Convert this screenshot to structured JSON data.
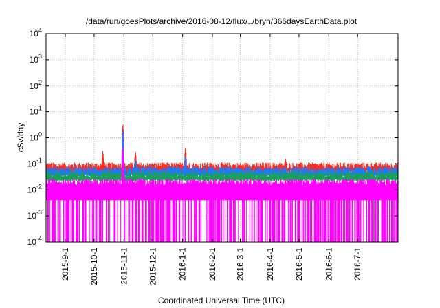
{
  "chart_data": {
    "type": "line",
    "title": "/data/run/goesPlots/archive/2016-08-12/flux/../bryn/366daysEarthData.plot",
    "xlabel": "Coordinated Universal Time (UTC)",
    "ylabel": "cSv/day",
    "xlim": [
      "2015-08-12",
      "2016-08-12"
    ],
    "ylim": [
      0.0001,
      10000
    ],
    "y_scale": "log",
    "grid": true,
    "x_ticks": [
      "2015-9-1",
      "2015-10-1",
      "2015-11-1",
      "2015-12-1",
      "2016-1-1",
      "2016-2-1",
      "2016-3-1",
      "2016-4-1",
      "2016-5-1",
      "2016-6-1",
      "2016-7-1"
    ],
    "y_ticks": [
      {
        "value": 0.0001,
        "base": "10",
        "exp": "-4"
      },
      {
        "value": 0.001,
        "base": "10",
        "exp": "-3"
      },
      {
        "value": 0.01,
        "base": "10",
        "exp": "-2"
      },
      {
        "value": 0.1,
        "base": "10",
        "exp": "-1"
      },
      {
        "value": 1,
        "base": "10",
        "exp": "0"
      },
      {
        "value": 10,
        "base": "10",
        "exp": "1"
      },
      {
        "value": 100,
        "base": "10",
        "exp": "2"
      },
      {
        "value": 1000,
        "base": "10",
        "exp": "3"
      },
      {
        "value": 10000,
        "base": "10",
        "exp": "4"
      }
    ],
    "series": [
      {
        "color": "#ff2a1a",
        "baseline": 0.085,
        "spikes": [
          {
            "x": "2015-10-10",
            "y": 0.32
          },
          {
            "x": "2015-10-31",
            "y": 3.5
          },
          {
            "x": "2015-11-13",
            "y": 0.31
          },
          {
            "x": "2016-1-4",
            "y": 0.45
          },
          {
            "x": "2016-4-17",
            "y": 0.16
          }
        ]
      },
      {
        "color": "#1e78ff",
        "baseline": 0.06,
        "spikes": [
          {
            "x": "2015-10-31",
            "y": 2.0
          },
          {
            "x": "2015-11-13",
            "y": 0.15
          },
          {
            "x": "2016-1-4",
            "y": 0.22
          }
        ]
      },
      {
        "color": "#1aa05a",
        "baseline": 0.04,
        "spikes": [
          {
            "x": "2015-10-31",
            "y": 0.5
          }
        ]
      },
      {
        "color": "#ff00ff",
        "baseline": 0.02,
        "floor": 0.004,
        "spikes": [
          {
            "x": "2015-10-31",
            "y": 0.5
          }
        ]
      }
    ]
  }
}
